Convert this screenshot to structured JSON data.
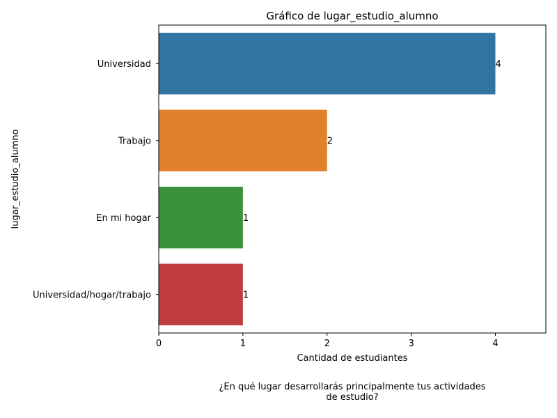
{
  "chart_data": {
    "type": "bar",
    "orientation": "horizontal",
    "title": "Gráfico de lugar_estudio_alumno",
    "xlabel": "Cantidad de estudiantes",
    "ylabel": "lugar_estudio_alumno",
    "categories": [
      "Universidad",
      "Trabajo",
      "En mi hogar",
      "Universidad/hogar/trabajo"
    ],
    "values": [
      4,
      2,
      1,
      1
    ],
    "data_labels": [
      "4",
      "2",
      "1",
      "1"
    ],
    "colors": [
      "#3274a1",
      "#e1812c",
      "#3a923a",
      "#c03d3e"
    ],
    "xlim": [
      0,
      4.6
    ],
    "xticks": [
      0,
      1,
      2,
      3,
      4
    ],
    "grid": false,
    "legend": "none"
  },
  "caption": {
    "line1": "¿En qué lugar desarrollarás principalmente tus actividades",
    "line2": "de estudio?"
  }
}
